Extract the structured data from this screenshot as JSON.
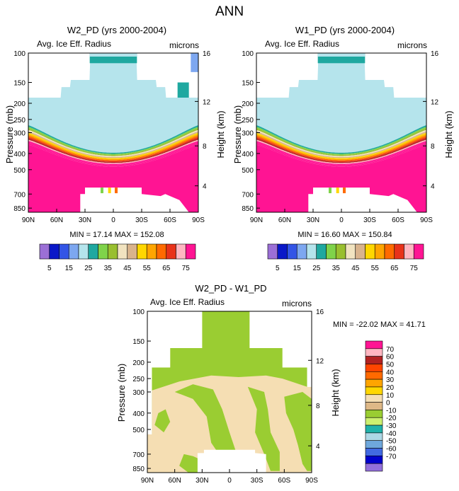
{
  "figure": {
    "title": "ANN"
  },
  "colors": {
    "zonal_palette": [
      "#9b6fd6",
      "#0a18c8",
      "#3355e6",
      "#7da7f0",
      "#b5e4ec",
      "#1fa8a0",
      "#7fd34a",
      "#99bf2f",
      "#f1e3c0",
      "#d9b38c",
      "#ffd700",
      "#ffa500",
      "#ff6a00",
      "#e8321a",
      "#b22222",
      "#ffb6c1",
      "#ff1493"
    ],
    "diff_palette": [
      "#9370db",
      "#0000cd",
      "#4169e1",
      "#6fa8dc",
      "#add8e6",
      "#20b2aa",
      "#7fff00",
      "#9acd32",
      "#f5deb3",
      "#deb887",
      "#ffd700",
      "#ffa500",
      "#ff6a00",
      "#ff4500",
      "#b22222",
      "#ffb6c1",
      "#ff1493"
    ]
  },
  "chart_data": [
    {
      "type": "heatmap",
      "name": "W2_PD",
      "title": "W2_PD (yrs 2000-2004)",
      "variable": "Avg. Ice Eff. Radius",
      "units": "microns",
      "ylabel": "Pressure (mb)",
      "y2label": "Height (km)",
      "x_ticks": [
        "90N",
        "60N",
        "30N",
        "0",
        "30S",
        "60S",
        "90S"
      ],
      "y_ticks": [
        100,
        150,
        200,
        250,
        300,
        400,
        500,
        700,
        850
      ],
      "y2_ticks": [
        16,
        12,
        8,
        4
      ],
      "ylim": [
        1000,
        100
      ],
      "xlim": [
        90,
        -90
      ],
      "stats": "MIN = 17.14   MAX = 152.08",
      "min": 17.14,
      "max": 152.08,
      "levels": [
        5,
        10,
        15,
        20,
        25,
        30,
        35,
        40,
        45,
        50,
        55,
        60,
        65,
        70,
        75
      ],
      "colorbar_labels": [
        "5",
        "15",
        "25",
        "35",
        "45",
        "55",
        "65",
        "75"
      ],
      "shift": 0
    },
    {
      "type": "heatmap",
      "name": "W1_PD",
      "title": "W1_PD (yrs 2000-2004)",
      "variable": "Avg. Ice Eff. Radius",
      "units": "microns",
      "ylabel": "Pressure (mb)",
      "y2label": "Height (km)",
      "x_ticks": [
        "90N",
        "60N",
        "30N",
        "0",
        "30S",
        "60S",
        "90S"
      ],
      "y_ticks": [
        100,
        150,
        200,
        250,
        300,
        400,
        500,
        700,
        850
      ],
      "y2_ticks": [
        16,
        12,
        8,
        4
      ],
      "ylim": [
        1000,
        100
      ],
      "xlim": [
        90,
        -90
      ],
      "stats": "MIN = 16.60   MAX = 150.84",
      "min": 16.6,
      "max": 150.84,
      "levels": [
        5,
        10,
        15,
        20,
        25,
        30,
        35,
        40,
        45,
        50,
        55,
        60,
        65,
        70,
        75
      ],
      "colorbar_labels": [
        "5",
        "15",
        "25",
        "35",
        "45",
        "55",
        "65",
        "75"
      ],
      "shift": 0
    },
    {
      "type": "heatmap",
      "name": "W2_PD - W1_PD",
      "title": "W2_PD - W1_PD",
      "variable": "Avg. Ice Eff. Radius",
      "units": "microns",
      "ylabel": "Pressure (mb)",
      "y2label": "Height (km)",
      "x_ticks": [
        "90N",
        "60N",
        "30N",
        "0",
        "30S",
        "60S",
        "90S"
      ],
      "y_ticks": [
        100,
        150,
        200,
        250,
        300,
        400,
        500,
        700,
        850
      ],
      "y2_ticks": [
        16,
        12,
        8,
        4
      ],
      "ylim": [
        1000,
        100
      ],
      "xlim": [
        90,
        -90
      ],
      "stats": "MIN = -22.02   MAX =  41.71",
      "min": -22.02,
      "max": 41.71,
      "levels": [
        -70,
        -60,
        -50,
        -40,
        -30,
        -20,
        -10,
        0,
        10,
        20,
        30,
        40,
        50,
        60,
        70
      ],
      "colorbar_labels": [
        "70",
        "60",
        "50",
        "40",
        "30",
        "20",
        "10",
        "0",
        "-10",
        "-20",
        "-30",
        "-40",
        "-50",
        "-60",
        "-70"
      ]
    }
  ]
}
